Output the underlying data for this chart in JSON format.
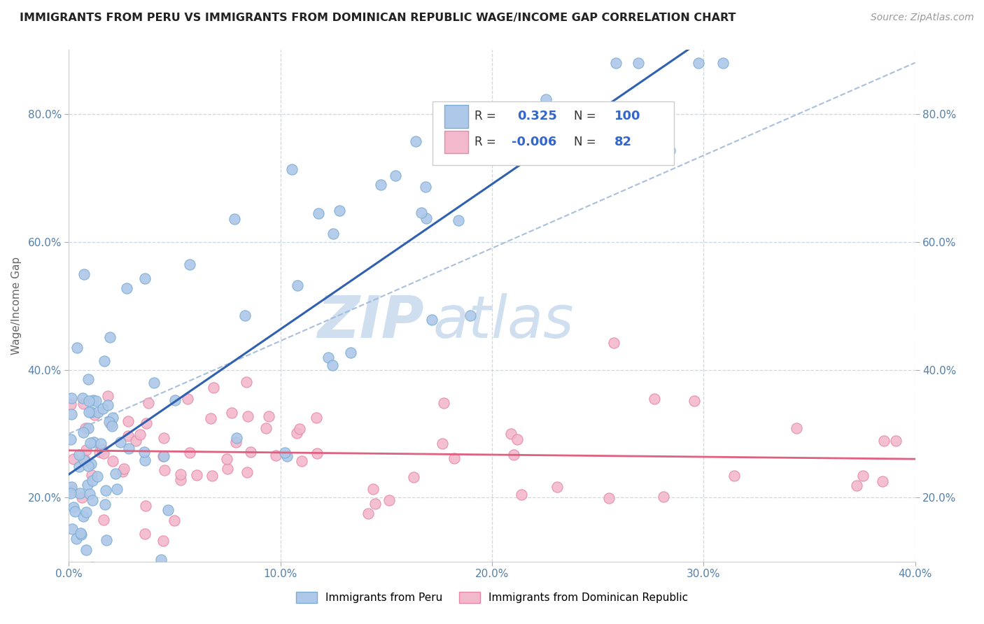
{
  "title": "IMMIGRANTS FROM PERU VS IMMIGRANTS FROM DOMINICAN REPUBLIC WAGE/INCOME GAP CORRELATION CHART",
  "source": "Source: ZipAtlas.com",
  "ylabel": "Wage/Income Gap",
  "xmin": 0.0,
  "xmax": 0.4,
  "ymin": 0.1,
  "ymax": 0.9,
  "xtick_labels": [
    "0.0%",
    "10.0%",
    "20.0%",
    "30.0%",
    "40.0%"
  ],
  "xtick_values": [
    0.0,
    0.1,
    0.2,
    0.3,
    0.4
  ],
  "ytick_labels": [
    "20.0%",
    "40.0%",
    "60.0%",
    "80.0%"
  ],
  "ytick_values": [
    0.2,
    0.4,
    0.6,
    0.8
  ],
  "series1_color": "#adc8e8",
  "series1_edge": "#7aadd4",
  "series2_color": "#f2b8cc",
  "series2_edge": "#e888a8",
  "series1_label": "Immigrants from Peru",
  "series2_label": "Immigrants from Dominican Republic",
  "series1_R": 0.325,
  "series1_N": 100,
  "series2_R": -0.006,
  "series2_N": 82,
  "line1_color": "#3060b0",
  "line2_color": "#e06080",
  "dash_color": "#a0b8d8",
  "background_color": "#ffffff",
  "grid_color": "#c8d8e8",
  "watermark_color": "#d0dff0"
}
